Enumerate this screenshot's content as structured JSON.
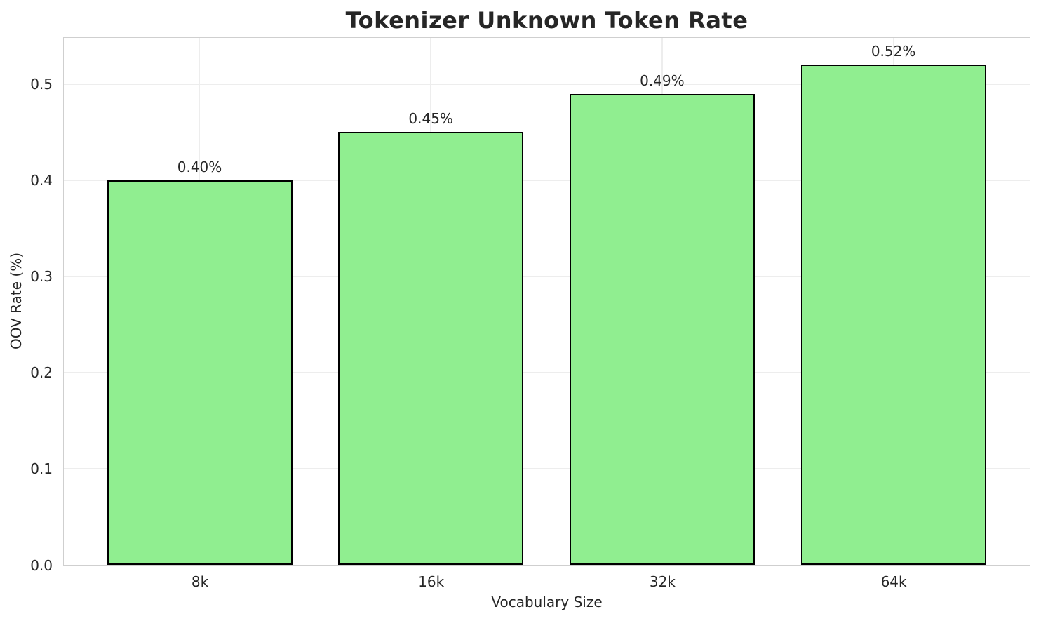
{
  "chart_data": {
    "type": "bar",
    "title": "Tokenizer Unknown Token Rate",
    "xlabel": "Vocabulary Size",
    "ylabel": "OOV Rate (%)",
    "categories": [
      "8k",
      "16k",
      "32k",
      "64k"
    ],
    "values": [
      0.4,
      0.45,
      0.49,
      0.52
    ],
    "value_labels": [
      "0.40%",
      "0.45%",
      "0.49%",
      "0.52%"
    ],
    "ylim": [
      0,
      0.548
    ],
    "yticks": [
      {
        "label": "0.0",
        "value": 0.0
      },
      {
        "label": "0.1",
        "value": 0.1
      },
      {
        "label": "0.2",
        "value": 0.2
      },
      {
        "label": "0.3",
        "value": 0.3
      },
      {
        "label": "0.4",
        "value": 0.4
      },
      {
        "label": "0.5",
        "value": 0.5
      }
    ],
    "grid": true,
    "legend": null,
    "colors": {
      "bar_fill": "#90EE90",
      "bar_edge": "#000000",
      "grid_line": "#ededed",
      "axis_border": "#cfcfcf",
      "text": "#262626",
      "background": "#ffffff"
    }
  }
}
